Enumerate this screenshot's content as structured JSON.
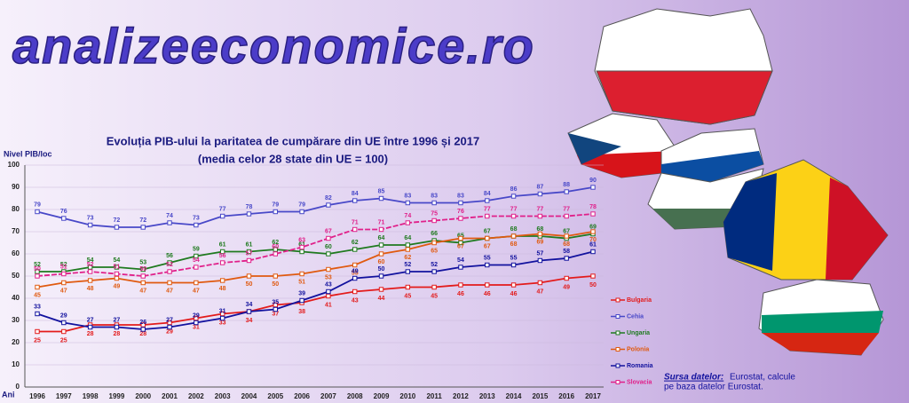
{
  "watermark": "analizeeconomice.ro",
  "chart_data": {
    "type": "line",
    "title": "Evoluția PIB-ului la paritatea de cumpărare din UE între 1996 și 2017",
    "subtitle": "(media celor 28 state din UE = 100)",
    "y_label": "Nivel PIB/loc",
    "x_label": "Ani",
    "categories": [
      "1996",
      "1997",
      "1998",
      "1999",
      "2000",
      "2001",
      "2002",
      "2003",
      "2004",
      "2005",
      "2006",
      "2007",
      "2008",
      "2009",
      "2010",
      "2011",
      "2012",
      "2013",
      "2014",
      "2015",
      "2016",
      "2017"
    ],
    "ylim": [
      0,
      100
    ],
    "yticks": [
      0,
      10,
      20,
      30,
      40,
      50,
      60,
      70,
      80,
      90,
      100
    ],
    "grid": true,
    "legend": "right",
    "series": [
      {
        "name": "Bulgaria",
        "color": "#e31b1b",
        "values": [
          25,
          25,
          28,
          28,
          28,
          29,
          31,
          33,
          34,
          37,
          38,
          41,
          43,
          44,
          45,
          45,
          46,
          46,
          46,
          47,
          49,
          50
        ]
      },
      {
        "name": "Cehia",
        "color": "#4848c8",
        "values": [
          79,
          76,
          73,
          72,
          72,
          74,
          73,
          77,
          78,
          79,
          79,
          82,
          84,
          85,
          83,
          83,
          83,
          84,
          86,
          87,
          88,
          90
        ]
      },
      {
        "name": "Ungaria",
        "color": "#1f7a1f",
        "values": [
          52,
          52,
          54,
          54,
          53,
          56,
          59,
          61,
          61,
          62,
          61,
          60,
          62,
          64,
          64,
          66,
          65,
          67,
          68,
          68,
          67,
          69
        ]
      },
      {
        "name": "Polonia",
        "color": "#e05a10",
        "values": [
          45,
          47,
          48,
          49,
          47,
          47,
          47,
          48,
          50,
          50,
          51,
          53,
          55,
          60,
          62,
          65,
          67,
          67,
          68,
          69,
          68,
          70
        ]
      },
      {
        "name": "Romania",
        "color": "#12129e",
        "values": [
          33,
          29,
          27,
          27,
          26,
          27,
          29,
          31,
          34,
          35,
          39,
          43,
          49,
          50,
          52,
          52,
          54,
          55,
          55,
          57,
          58,
          61
        ]
      },
      {
        "name": "Slovacia",
        "color": "#e0208a",
        "values": [
          50,
          51,
          52,
          51,
          50,
          52,
          54,
          56,
          57,
          60,
          63,
          67,
          71,
          71,
          74,
          75,
          76,
          77,
          77,
          77,
          77,
          78
        ]
      }
    ]
  },
  "source": {
    "label": "Sursa datelor:",
    "text": "Eurostat, calcule",
    "text2": "pe baza datelor Eurostat."
  }
}
